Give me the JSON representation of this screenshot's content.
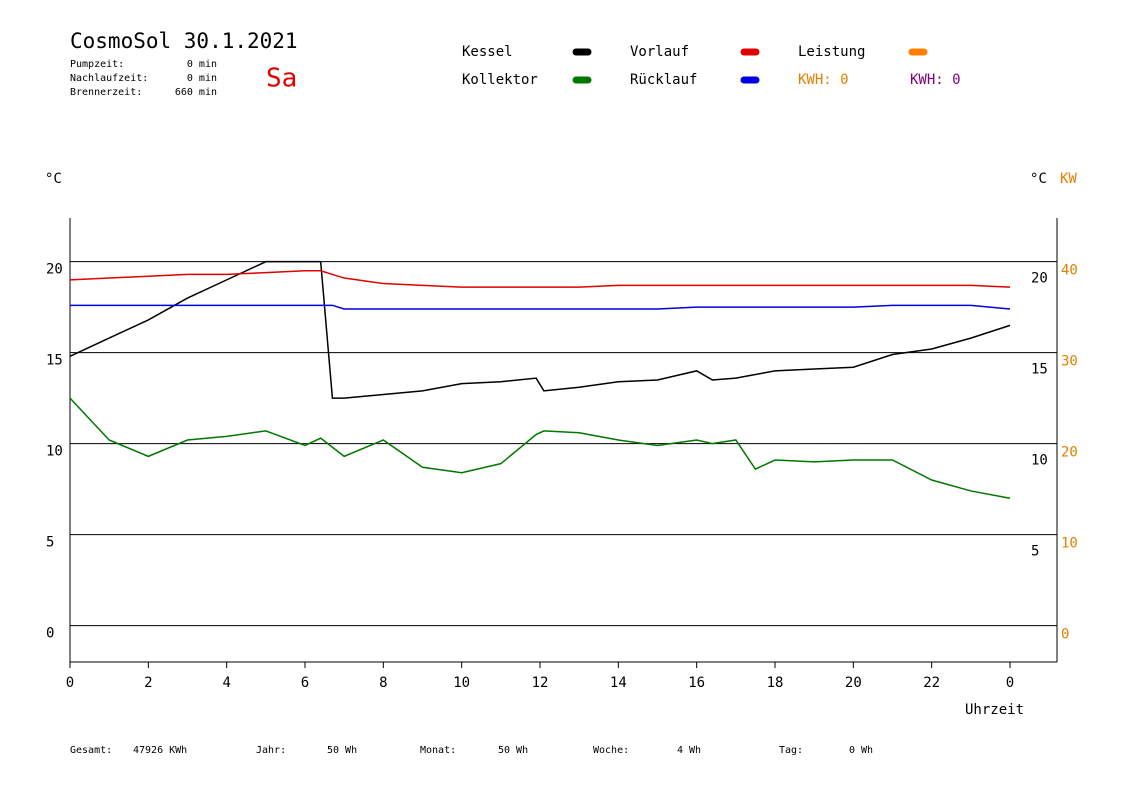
{
  "chart_data": {
    "type": "line",
    "title": "CosmoSol 30.1.2021",
    "day": "Sa",
    "stats": [
      {
        "label": "Pumpzeit:",
        "value": "0 min"
      },
      {
        "label": "Nachlaufzeit:",
        "value": "0 min"
      },
      {
        "label": "Brennerzeit:",
        "value": "660 min"
      }
    ],
    "kwh_labels": [
      {
        "text": "KWH: 0",
        "color": "#e08000"
      },
      {
        "text": "KWH: 0",
        "color": "#800080"
      }
    ],
    "y_label": "°C",
    "y_label_right": "°C",
    "y2_label": "KW",
    "x_label": "Uhrzeit",
    "x": [
      0,
      1,
      2,
      3,
      4,
      5,
      6,
      6.4,
      6.7,
      7,
      8,
      9,
      10,
      11,
      11.9,
      12.1,
      13,
      14,
      15,
      16,
      16.4,
      17,
      17.5,
      18,
      19,
      20,
      21,
      22,
      23,
      24
    ],
    "series": [
      {
        "name": "Kessel",
        "color": "#000000",
        "values": [
          14.8,
          15.8,
          16.8,
          18.0,
          19.0,
          20.0,
          20.0,
          20.0,
          12.5,
          12.5,
          12.7,
          12.9,
          13.3,
          13.4,
          13.6,
          12.9,
          13.1,
          13.4,
          13.5,
          14.0,
          13.5,
          13.6,
          13.8,
          14.0,
          14.1,
          14.2,
          14.9,
          15.2,
          15.8,
          16.5
        ]
      },
      {
        "name": "Vorlauf",
        "color": "#e00000",
        "values": [
          19.0,
          19.1,
          19.2,
          19.3,
          19.3,
          19.4,
          19.5,
          19.5,
          19.3,
          19.1,
          18.8,
          18.7,
          18.6,
          18.6,
          18.6,
          18.6,
          18.6,
          18.7,
          18.7,
          18.7,
          18.7,
          18.7,
          18.7,
          18.7,
          18.7,
          18.7,
          18.7,
          18.7,
          18.7,
          18.6
        ]
      },
      {
        "name": "Leistung",
        "color": "#ff8000",
        "values": [
          null,
          null,
          null,
          null,
          null,
          null,
          null,
          null,
          null,
          null,
          null,
          null,
          null,
          null,
          null,
          null,
          null,
          null,
          null,
          null,
          null,
          null,
          null,
          null,
          null,
          null,
          null,
          null,
          null,
          null
        ]
      },
      {
        "name": "Kollektor",
        "color": "#007800",
        "values": [
          12.5,
          10.2,
          9.3,
          10.2,
          10.4,
          10.7,
          9.9,
          10.3,
          9.8,
          9.3,
          10.2,
          8.7,
          8.4,
          8.9,
          10.5,
          10.7,
          10.6,
          10.2,
          9.9,
          10.2,
          10.0,
          10.2,
          8.6,
          9.1,
          9.0,
          9.1,
          9.1,
          8.0,
          7.4,
          7.0
        ]
      },
      {
        "name": "Rücklauf",
        "color": "#0000e0",
        "values": [
          17.6,
          17.6,
          17.6,
          17.6,
          17.6,
          17.6,
          17.6,
          17.6,
          17.6,
          17.4,
          17.4,
          17.4,
          17.4,
          17.4,
          17.4,
          17.4,
          17.4,
          17.4,
          17.4,
          17.5,
          17.5,
          17.5,
          17.5,
          17.5,
          17.5,
          17.5,
          17.6,
          17.6,
          17.6,
          17.4
        ]
      }
    ],
    "xlim": [
      0,
      25.2
    ],
    "xticks": [
      0,
      2,
      4,
      6,
      8,
      10,
      12,
      14,
      16,
      18,
      20,
      22,
      {
        "value": 24,
        "label": "0"
      }
    ],
    "ylim": [
      -2,
      22.4
    ],
    "yticks": [
      0,
      5,
      10,
      15,
      20
    ],
    "y2lim": [
      -4,
      44.8
    ],
    "y2ticks": [
      0,
      10,
      20,
      30,
      40
    ],
    "y2_color": "#e08000",
    "grid": true,
    "footer": [
      {
        "label": "Gesamt:",
        "value": "47926 KWh"
      },
      {
        "label": "Jahr:",
        "value": "50 Wh"
      },
      {
        "label": "Monat:",
        "value": "50 Wh"
      },
      {
        "label": "Woche:",
        "value": "4 Wh"
      },
      {
        "label": "Tag:",
        "value": "0 Wh"
      }
    ]
  }
}
